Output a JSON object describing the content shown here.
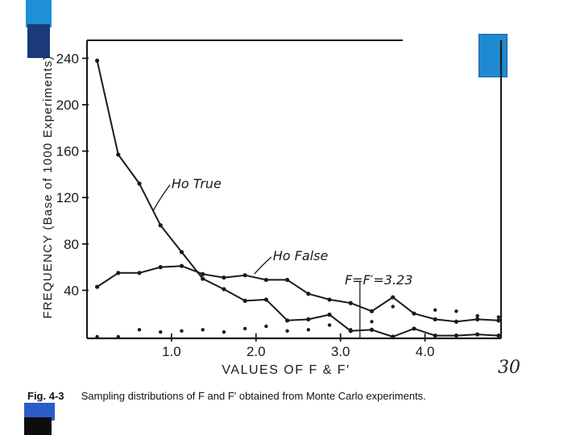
{
  "colors": {
    "ink": "#1a1a1a",
    "deco_light_blue": "#1e90d6",
    "deco_dark_blue": "#1a3a7a",
    "deco_mid_blue": "#2b5cc8",
    "deco_black": "#0d0d0d"
  },
  "page_number": "30",
  "caption": {
    "label": "Fig. 4-3",
    "text": "Sampling distributions of F and F′ obtained from Monte Carlo experiments."
  },
  "chart_data": {
    "type": "line",
    "xlabel": "VALUES OF F & F′",
    "ylabel": "FREQUENCY (Base of 1000 Experiments)",
    "xlim": [
      0,
      4.9
    ],
    "ylim": [
      0,
      250
    ],
    "xticks": [
      1.0,
      2.0,
      3.0,
      4.0
    ],
    "xtick_labels": [
      "1.0",
      "2.0",
      "3.0",
      "4.0"
    ],
    "yticks": [
      40,
      80,
      120,
      160,
      200,
      240
    ],
    "ytick_labels": [
      "40",
      "80",
      "120",
      "160",
      "200",
      "240"
    ],
    "grid": false,
    "series": [
      {
        "name": "Ho True",
        "style": "solid-line-with-dots",
        "x": [
          0.12,
          0.37,
          0.62,
          0.87,
          1.12,
          1.37,
          1.62,
          1.87,
          2.12,
          2.37,
          2.62,
          2.87,
          3.12,
          3.37,
          3.62,
          3.87,
          4.12,
          4.37,
          4.62,
          4.87
        ],
        "y": [
          238,
          157,
          132,
          96,
          73,
          50,
          41,
          31,
          32,
          14,
          15,
          19,
          5,
          6,
          0,
          7,
          1,
          1,
          2,
          1
        ]
      },
      {
        "name": "Ho False",
        "style": "solid-line-with-dots",
        "x": [
          0.12,
          0.37,
          0.62,
          0.87,
          1.12,
          1.37,
          1.62,
          1.87,
          2.12,
          2.37,
          2.62,
          2.87,
          3.12,
          3.37,
          3.62,
          3.87,
          4.12,
          4.37,
          4.62,
          4.87
        ],
        "y": [
          43,
          55,
          55,
          60,
          61,
          54,
          51,
          53,
          49,
          49,
          37,
          32,
          29,
          22,
          34,
          20,
          15,
          13,
          15,
          14
        ]
      },
      {
        "name": "",
        "style": "dots-only",
        "x": [
          0.12,
          0.37,
          0.62,
          0.87,
          1.12,
          1.37,
          1.62,
          1.87,
          2.12,
          2.37,
          2.62,
          2.87,
          3.12,
          3.37,
          3.62,
          3.87,
          4.12,
          4.37,
          4.62,
          4.87
        ],
        "y": [
          0,
          0,
          6,
          4,
          5,
          6,
          4,
          7,
          9,
          5,
          6,
          10,
          6,
          13,
          26,
          20,
          23,
          22,
          18,
          17
        ]
      }
    ],
    "annotations": [
      {
        "text": "Ho True",
        "x": 1.0,
        "y": 128
      },
      {
        "text": "Ho False",
        "x": 2.2,
        "y": 66
      },
      {
        "text": "F=F′=3.23",
        "x": 3.05,
        "y": 45
      }
    ],
    "critical_value": 3.23
  }
}
